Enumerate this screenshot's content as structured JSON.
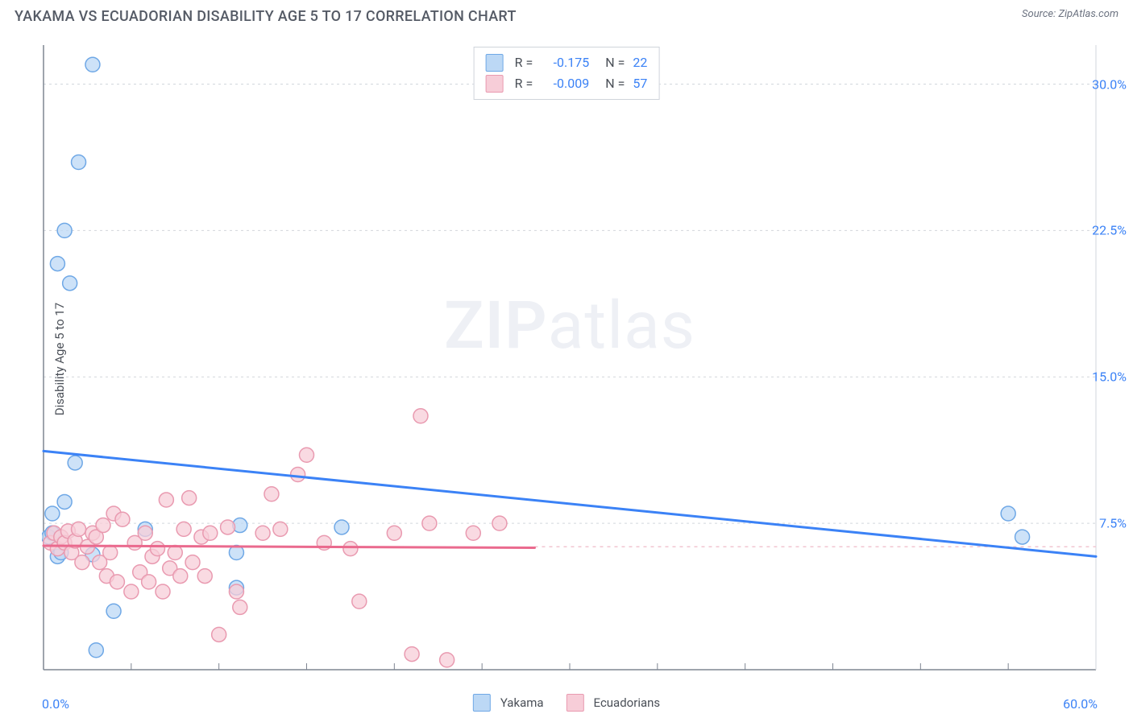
{
  "header": {
    "title": "YAKAMA VS ECUADORIAN DISABILITY AGE 5 TO 17 CORRELATION CHART",
    "source_label": "Source: ",
    "source_name": "ZipAtlas.com"
  },
  "axes": {
    "y_label": "Disability Age 5 to 17",
    "x_min_label": "0.0%",
    "x_max_label": "60.0%",
    "xlim": [
      0,
      60
    ],
    "ylim": [
      0,
      32
    ],
    "y_ticks": [
      {
        "value": 7.5,
        "label": "7.5%"
      },
      {
        "value": 15.0,
        "label": "15.0%"
      },
      {
        "value": 22.5,
        "label": "22.5%"
      },
      {
        "value": 30.0,
        "label": "30.0%"
      }
    ],
    "x_minor_ticks": [
      5,
      10,
      15,
      20,
      25,
      30,
      35,
      40,
      45,
      50,
      55
    ],
    "axis_color": "#7e8592",
    "grid_color": "#d2d6dc",
    "grid_dash": "3,4"
  },
  "watermark": {
    "zip": "ZIP",
    "atlas": "atlas"
  },
  "series": [
    {
      "id": "yakama",
      "name": "Yakama",
      "fill": "#bcd8f5",
      "stroke": "#6fa8e6",
      "line_color": "#3b82f6",
      "line_width": 3,
      "marker_r": 9,
      "stats": {
        "R": "-0.175",
        "N": "22"
      },
      "trend": {
        "x1": 0,
        "y1": 11.2,
        "x2": 60,
        "y2": 5.8
      },
      "trend_x_extent": [
        0,
        60
      ],
      "points": [
        [
          0.3,
          6.8
        ],
        [
          0.5,
          7.0
        ],
        [
          0.8,
          5.8
        ],
        [
          0.5,
          8.0
        ],
        [
          1.2,
          8.6
        ],
        [
          0.8,
          20.8
        ],
        [
          1.5,
          19.8
        ],
        [
          1.2,
          22.5
        ],
        [
          2.0,
          26.0
        ],
        [
          2.8,
          31.0
        ],
        [
          1.8,
          10.6
        ],
        [
          1.0,
          6.0
        ],
        [
          2.8,
          5.9
        ],
        [
          4.0,
          3.0
        ],
        [
          3.0,
          1.0
        ],
        [
          5.8,
          7.2
        ],
        [
          11.0,
          4.2
        ],
        [
          11.0,
          6.0
        ],
        [
          11.2,
          7.4
        ],
        [
          17.0,
          7.3
        ],
        [
          55.0,
          8.0
        ],
        [
          55.8,
          6.8
        ]
      ]
    },
    {
      "id": "ecuadorians",
      "name": "Ecuadorians",
      "fill": "#f7cdd8",
      "stroke": "#e99ab0",
      "line_color": "#ea6a8e",
      "line_width": 3,
      "marker_r": 9,
      "stats": {
        "R": "-0.009",
        "N": "57"
      },
      "trend": {
        "x1": 0,
        "y1": 6.35,
        "x2": 28,
        "y2": 6.25
      },
      "trend_x_extent": [
        0,
        28
      ],
      "points": [
        [
          0.4,
          6.5
        ],
        [
          0.6,
          7.0
        ],
        [
          0.8,
          6.2
        ],
        [
          1.0,
          6.8
        ],
        [
          1.2,
          6.5
        ],
        [
          1.4,
          7.1
        ],
        [
          1.6,
          6.0
        ],
        [
          1.8,
          6.6
        ],
        [
          2.0,
          7.2
        ],
        [
          2.2,
          5.5
        ],
        [
          2.5,
          6.3
        ],
        [
          2.8,
          7.0
        ],
        [
          3.0,
          6.8
        ],
        [
          3.2,
          5.5
        ],
        [
          3.4,
          7.4
        ],
        [
          3.6,
          4.8
        ],
        [
          3.8,
          6.0
        ],
        [
          4.0,
          8.0
        ],
        [
          4.2,
          4.5
        ],
        [
          4.5,
          7.7
        ],
        [
          5.0,
          4.0
        ],
        [
          5.2,
          6.5
        ],
        [
          5.5,
          5.0
        ],
        [
          5.8,
          7.0
        ],
        [
          6.0,
          4.5
        ],
        [
          6.2,
          5.8
        ],
        [
          6.5,
          6.2
        ],
        [
          6.8,
          4.0
        ],
        [
          7.0,
          8.7
        ],
        [
          7.2,
          5.2
        ],
        [
          7.5,
          6.0
        ],
        [
          7.8,
          4.8
        ],
        [
          8.0,
          7.2
        ],
        [
          8.3,
          8.8
        ],
        [
          8.5,
          5.5
        ],
        [
          9.0,
          6.8
        ],
        [
          9.2,
          4.8
        ],
        [
          9.5,
          7.0
        ],
        [
          10.0,
          1.8
        ],
        [
          10.5,
          7.3
        ],
        [
          11.0,
          4.0
        ],
        [
          11.2,
          3.2
        ],
        [
          12.5,
          7.0
        ],
        [
          13.0,
          9.0
        ],
        [
          13.5,
          7.2
        ],
        [
          14.5,
          10.0
        ],
        [
          15.0,
          11.0
        ],
        [
          16.0,
          6.5
        ],
        [
          17.5,
          6.2
        ],
        [
          18.0,
          3.5
        ],
        [
          20.0,
          7.0
        ],
        [
          21.0,
          0.8
        ],
        [
          21.5,
          13.0
        ],
        [
          22.0,
          7.5
        ],
        [
          23.0,
          0.5
        ],
        [
          24.5,
          7.0
        ],
        [
          26.0,
          7.5
        ]
      ]
    }
  ],
  "extension_dash": {
    "color": "#f2c5d0",
    "dash": "4,5",
    "width": 1.5
  },
  "stats_box": {
    "R_label": "R =",
    "N_label": "N ="
  },
  "legend": {
    "label_yakama": "Yakama",
    "label_ecu": "Ecuadorians"
  },
  "background_color": "#ffffff"
}
